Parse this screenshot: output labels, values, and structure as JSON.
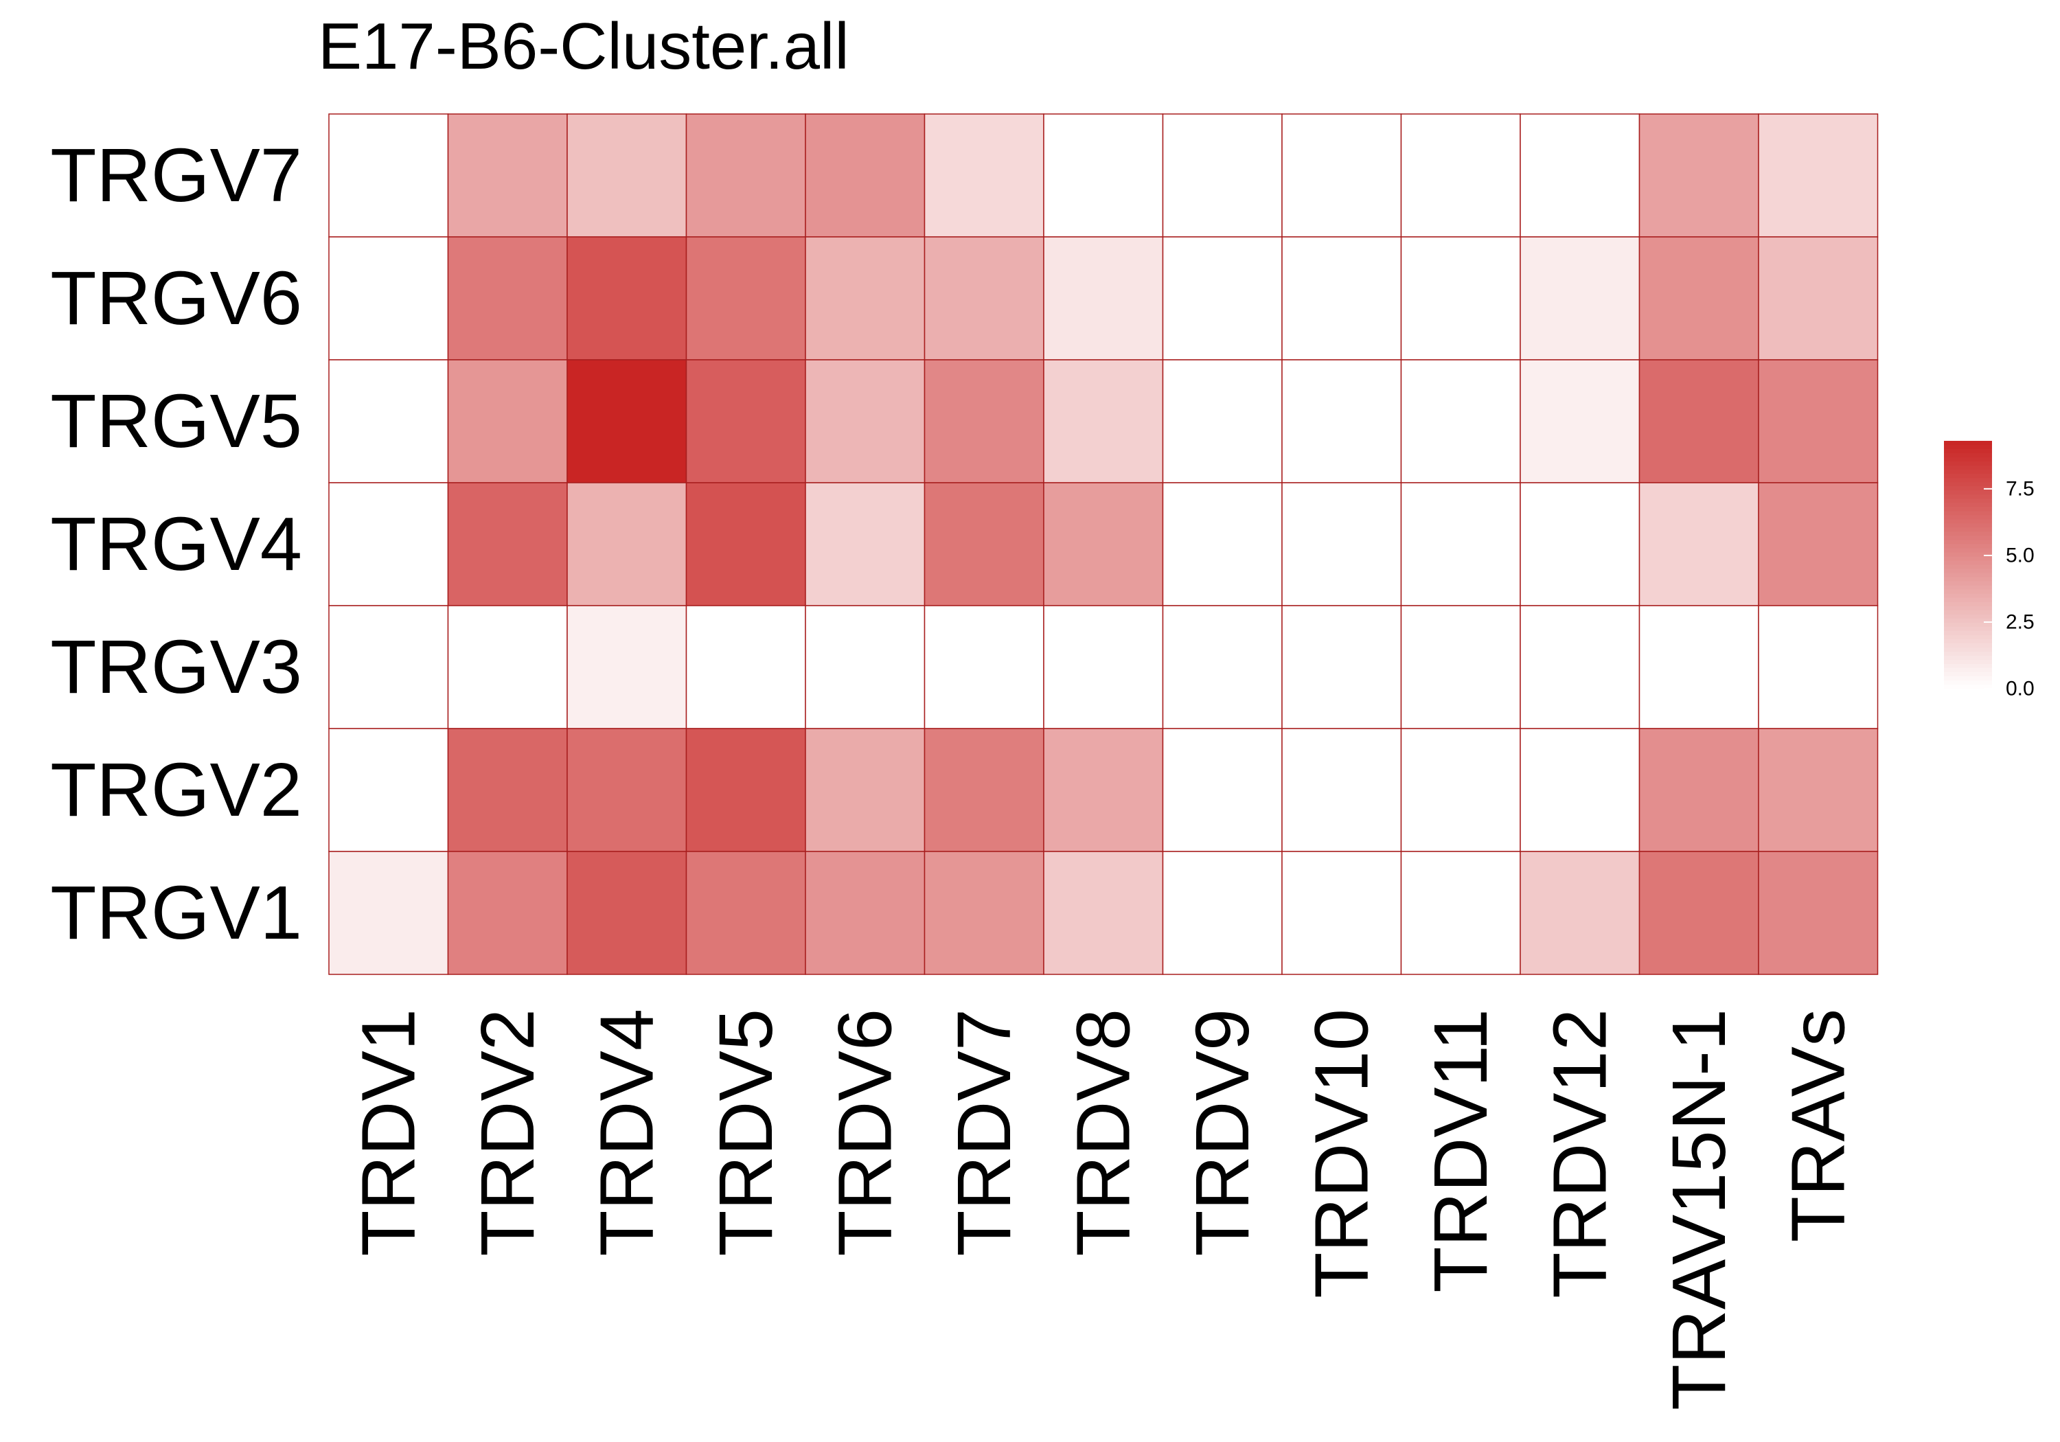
{
  "chart_data": {
    "type": "heatmap",
    "title": "E17-B6-Cluster.all",
    "rows": [
      "TRGV7",
      "TRGV6",
      "TRGV5",
      "TRGV4",
      "TRGV3",
      "TRGV2",
      "TRGV1"
    ],
    "columns": [
      "TRDV1",
      "TRDV2",
      "TRDV4",
      "TRDV5",
      "TRDV6",
      "TRDV7",
      "TRDV8",
      "TRDV9",
      "TRDV10",
      "TRDV11",
      "TRDV12",
      "TRAV15N-1",
      "TRAVs"
    ],
    "values": [
      [
        0.0,
        3.8,
        2.7,
        4.3,
        4.6,
        1.6,
        0.0,
        0.0,
        0.0,
        0.0,
        0.0,
        4.0,
        1.8
      ],
      [
        0.0,
        5.7,
        7.3,
        5.9,
        3.3,
        3.4,
        1.1,
        0.0,
        0.0,
        0.0,
        0.8,
        4.7,
        2.8
      ],
      [
        0.0,
        4.5,
        9.3,
        6.9,
        3.1,
        5.1,
        2.0,
        0.0,
        0.0,
        0.0,
        0.7,
        6.3,
        5.2
      ],
      [
        0.0,
        6.6,
        3.3,
        7.4,
        2.0,
        5.8,
        4.2,
        0.0,
        0.0,
        0.0,
        0.0,
        1.9,
        4.9
      ],
      [
        0.0,
        0.0,
        0.7,
        0.0,
        0.0,
        0.0,
        0.0,
        0.0,
        0.0,
        0.0,
        0.0,
        0.0,
        0.0
      ],
      [
        0.0,
        6.5,
        6.2,
        7.2,
        3.6,
        5.5,
        3.7,
        0.0,
        0.0,
        0.0,
        0.0,
        4.8,
        4.2
      ],
      [
        0.8,
        5.4,
        7.0,
        5.8,
        4.6,
        4.5,
        2.3,
        0.0,
        0.0,
        0.0,
        2.3,
        5.8,
        5.1
      ]
    ],
    "color_scale": {
      "min": 0.0,
      "max": 9.3,
      "low_color": "#ffffff",
      "high_color": "#c92524",
      "border_color": "#a81e1e"
    },
    "legend": {
      "position": "right",
      "ticks": [
        0.0,
        2.5,
        5.0,
        7.5
      ],
      "tick_labels": [
        "0.0",
        "2.5",
        "5.0",
        "7.5"
      ]
    }
  }
}
